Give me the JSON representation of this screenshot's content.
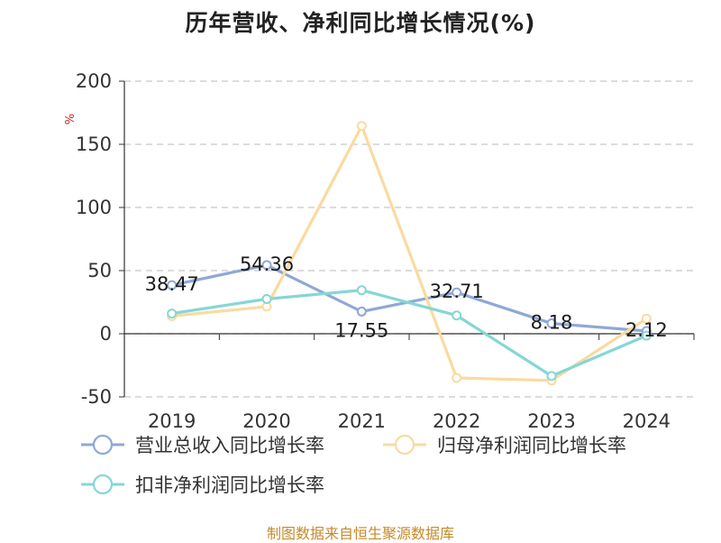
{
  "chart_data": {
    "type": "line",
    "title": "历年营收、净利同比增长情况(%)",
    "ylabel": "%",
    "xlabel": "",
    "categories": [
      "2019",
      "2020",
      "2021",
      "2022",
      "2023",
      "2024"
    ],
    "yticks": [
      200,
      150,
      100,
      50,
      0,
      -50
    ],
    "ylim": [
      -50,
      200
    ],
    "grid": "horizontal dashed",
    "legend_position": "bottom",
    "series": [
      {
        "name": "营业总收入同比增长率",
        "values": [
          38.47,
          54.36,
          17.55,
          32.71,
          8.18,
          2.12
        ],
        "labels": [
          "38.47",
          "54.36",
          "17.55",
          "32.71",
          "8.18",
          "2.12"
        ],
        "color": "#8fa8d6"
      },
      {
        "name": "归母净利润同比增长率",
        "values": [
          14,
          21.5,
          164.5,
          -35,
          -37,
          12
        ],
        "color": "#f9dba0"
      },
      {
        "name": "扣非净利润同比增长率",
        "values": [
          16,
          27.5,
          34.5,
          14.5,
          -33.5,
          -1.5
        ],
        "color": "#86d6d6"
      }
    ]
  },
  "source": "制图数据来自恒生聚源数据库"
}
